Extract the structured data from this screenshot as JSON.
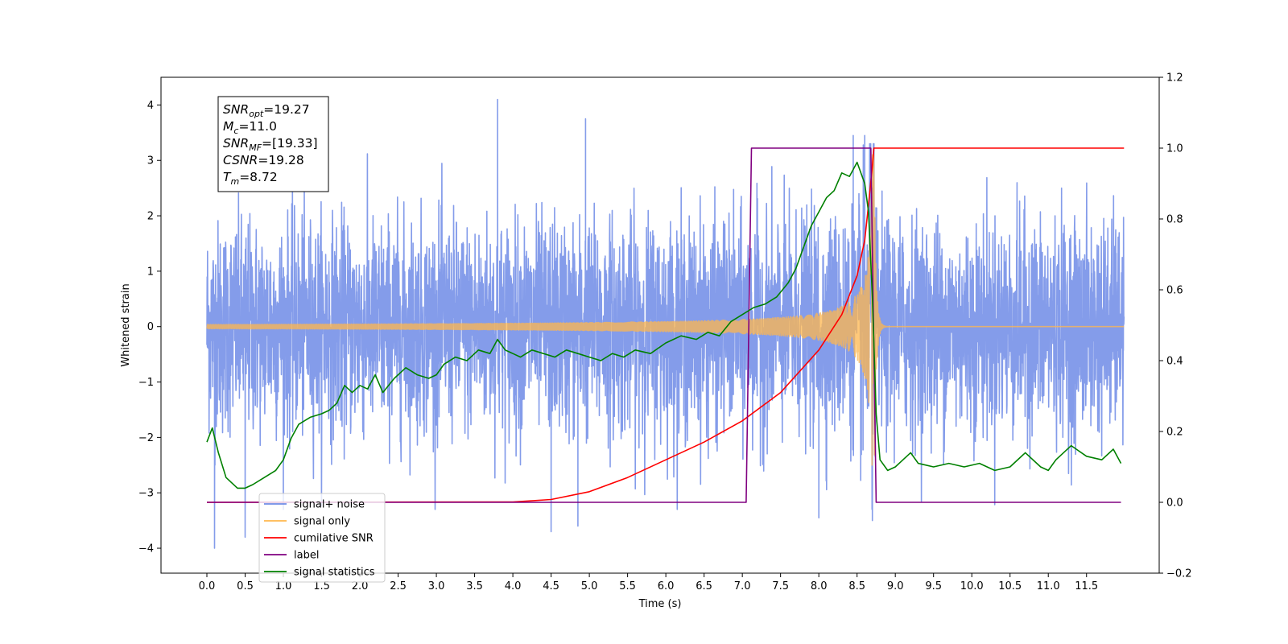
{
  "chart_data": {
    "type": "line",
    "title": "",
    "xlabel": "Time (s)",
    "ylabel": "Whitened strain",
    "ylabel_right": "",
    "xlim": [
      -0.6,
      12.45
    ],
    "ylim": [
      -4.45,
      4.5
    ],
    "ylim_right": [
      -0.2,
      1.2
    ],
    "x_ticks": [
      0.0,
      0.5,
      1.0,
      1.5,
      2.0,
      2.5,
      3.0,
      3.5,
      4.0,
      4.5,
      5.0,
      5.5,
      6.0,
      6.5,
      7.0,
      7.5,
      8.0,
      8.5,
      9.0,
      9.5,
      10.0,
      10.5,
      11.0,
      11.5
    ],
    "x_tick_labels": [
      "0.0",
      "0.5",
      "1.0",
      "1.5",
      "2.0",
      "2.5",
      "3.0",
      "3.5",
      "4.0",
      "4.5",
      "5.0",
      "5.5",
      "6.0",
      "6.5",
      "7.0",
      "7.5",
      "8.0",
      "8.5",
      "9.0",
      "9.5",
      "10.0",
      "10.5",
      "11.0",
      "11.5"
    ],
    "y_ticks": [
      -4,
      -3,
      -2,
      -1,
      0,
      1,
      2,
      3,
      4
    ],
    "y_tick_labels": [
      "−4",
      "−3",
      "−2",
      "−1",
      "0",
      "1",
      "2",
      "3",
      "4"
    ],
    "y_ticks_right": [
      -0.2,
      0.0,
      0.2,
      0.4,
      0.6,
      0.8,
      1.0,
      1.2
    ],
    "y_tick_labels_right": [
      "−0.2",
      "0.0",
      "0.2",
      "0.4",
      "0.6",
      "0.8",
      "1.0",
      "1.2"
    ],
    "grid": false,
    "legend_placement": "lower-left",
    "annotation": [
      {
        "base": "SNR",
        "sub": "opt",
        "rest": "=19.27"
      },
      {
        "base": "M",
        "sub": "c",
        "rest": "=11.0"
      },
      {
        "base": "SNR",
        "sub": "MF",
        "rest": "=[19.33]"
      },
      {
        "base": "CSNR",
        "sub": "",
        "rest": "=19.28"
      },
      {
        "base": "T",
        "sub": "m",
        "rest": "=8.72"
      }
    ],
    "series": [
      {
        "name": "signal+ noise",
        "color": "#6f8be6",
        "axis": "left",
        "kind": "noise_plus_chirp",
        "x_start": 0.0,
        "x_end": 11.99,
        "noise_std": 1.0,
        "merger_time": 8.72,
        "peak_spikes": [
          [
            0.1,
            -4.0
          ],
          [
            0.5,
            -3.8
          ],
          [
            3.8,
            4.1
          ],
          [
            4.95,
            3.75
          ],
          [
            4.5,
            -3.7
          ],
          [
            4.85,
            -3.6
          ],
          [
            8.0,
            -3.45
          ],
          [
            8.7,
            -3.5
          ],
          [
            8.6,
            3.45
          ],
          [
            8.45,
            3.45
          ]
        ]
      },
      {
        "name": "signal only",
        "color": "#ffb74d",
        "axis": "left",
        "kind": "chirp",
        "x_start": 0.0,
        "x_end": 11.99,
        "merger_time": 8.72,
        "peak_amplitude": 3.3
      },
      {
        "name": "cumilative SNR",
        "color": "#ff0000",
        "axis": "right",
        "x": [
          0.0,
          4.0,
          4.5,
          5.0,
          5.5,
          6.0,
          6.5,
          7.0,
          7.5,
          8.0,
          8.3,
          8.5,
          8.6,
          8.65,
          8.7,
          8.72,
          9.0,
          10.0,
          11.0,
          11.99
        ],
        "y": [
          0.0,
          0.001,
          0.008,
          0.03,
          0.07,
          0.12,
          0.17,
          0.23,
          0.31,
          0.43,
          0.53,
          0.64,
          0.74,
          0.84,
          0.95,
          1.0,
          1.0,
          1.0,
          1.0,
          1.0
        ]
      },
      {
        "name": "label",
        "color": "#800080",
        "axis": "right",
        "x": [
          0.0,
          7.05,
          7.12,
          8.68,
          8.75,
          11.95
        ],
        "y": [
          0.0,
          0.0,
          1.0,
          1.0,
          0.0,
          0.0
        ]
      },
      {
        "name": "signal statistics",
        "color": "#008000",
        "axis": "right",
        "x": [
          0.0,
          0.07,
          0.15,
          0.25,
          0.4,
          0.5,
          0.6,
          0.75,
          0.9,
          1.0,
          1.1,
          1.2,
          1.35,
          1.5,
          1.6,
          1.7,
          1.8,
          1.9,
          2.0,
          2.1,
          2.2,
          2.3,
          2.45,
          2.6,
          2.75,
          2.9,
          3.0,
          3.1,
          3.25,
          3.4,
          3.55,
          3.7,
          3.8,
          3.9,
          4.0,
          4.1,
          4.25,
          4.4,
          4.55,
          4.7,
          4.85,
          5.0,
          5.15,
          5.3,
          5.45,
          5.6,
          5.8,
          6.0,
          6.2,
          6.4,
          6.55,
          6.7,
          6.85,
          7.0,
          7.15,
          7.3,
          7.45,
          7.6,
          7.7,
          7.8,
          7.9,
          8.0,
          8.1,
          8.2,
          8.3,
          8.4,
          8.5,
          8.6,
          8.65,
          8.7,
          8.75,
          8.8,
          8.9,
          9.0,
          9.1,
          9.2,
          9.3,
          9.5,
          9.7,
          9.9,
          10.1,
          10.3,
          10.5,
          10.7,
          10.9,
          11.0,
          11.1,
          11.3,
          11.5,
          11.7,
          11.85,
          11.95
        ],
        "y": [
          0.17,
          0.21,
          0.14,
          0.07,
          0.04,
          0.04,
          0.05,
          0.07,
          0.09,
          0.12,
          0.18,
          0.22,
          0.24,
          0.25,
          0.26,
          0.28,
          0.33,
          0.31,
          0.33,
          0.32,
          0.36,
          0.31,
          0.35,
          0.38,
          0.36,
          0.35,
          0.36,
          0.39,
          0.41,
          0.4,
          0.43,
          0.42,
          0.46,
          0.43,
          0.42,
          0.41,
          0.43,
          0.42,
          0.41,
          0.43,
          0.42,
          0.41,
          0.4,
          0.42,
          0.41,
          0.43,
          0.42,
          0.45,
          0.47,
          0.46,
          0.48,
          0.47,
          0.51,
          0.53,
          0.55,
          0.56,
          0.58,
          0.62,
          0.66,
          0.72,
          0.78,
          0.82,
          0.86,
          0.88,
          0.93,
          0.92,
          0.96,
          0.9,
          0.82,
          0.58,
          0.25,
          0.12,
          0.09,
          0.1,
          0.12,
          0.14,
          0.11,
          0.1,
          0.11,
          0.1,
          0.11,
          0.09,
          0.1,
          0.14,
          0.1,
          0.09,
          0.12,
          0.16,
          0.13,
          0.12,
          0.15,
          0.11
        ]
      }
    ]
  }
}
